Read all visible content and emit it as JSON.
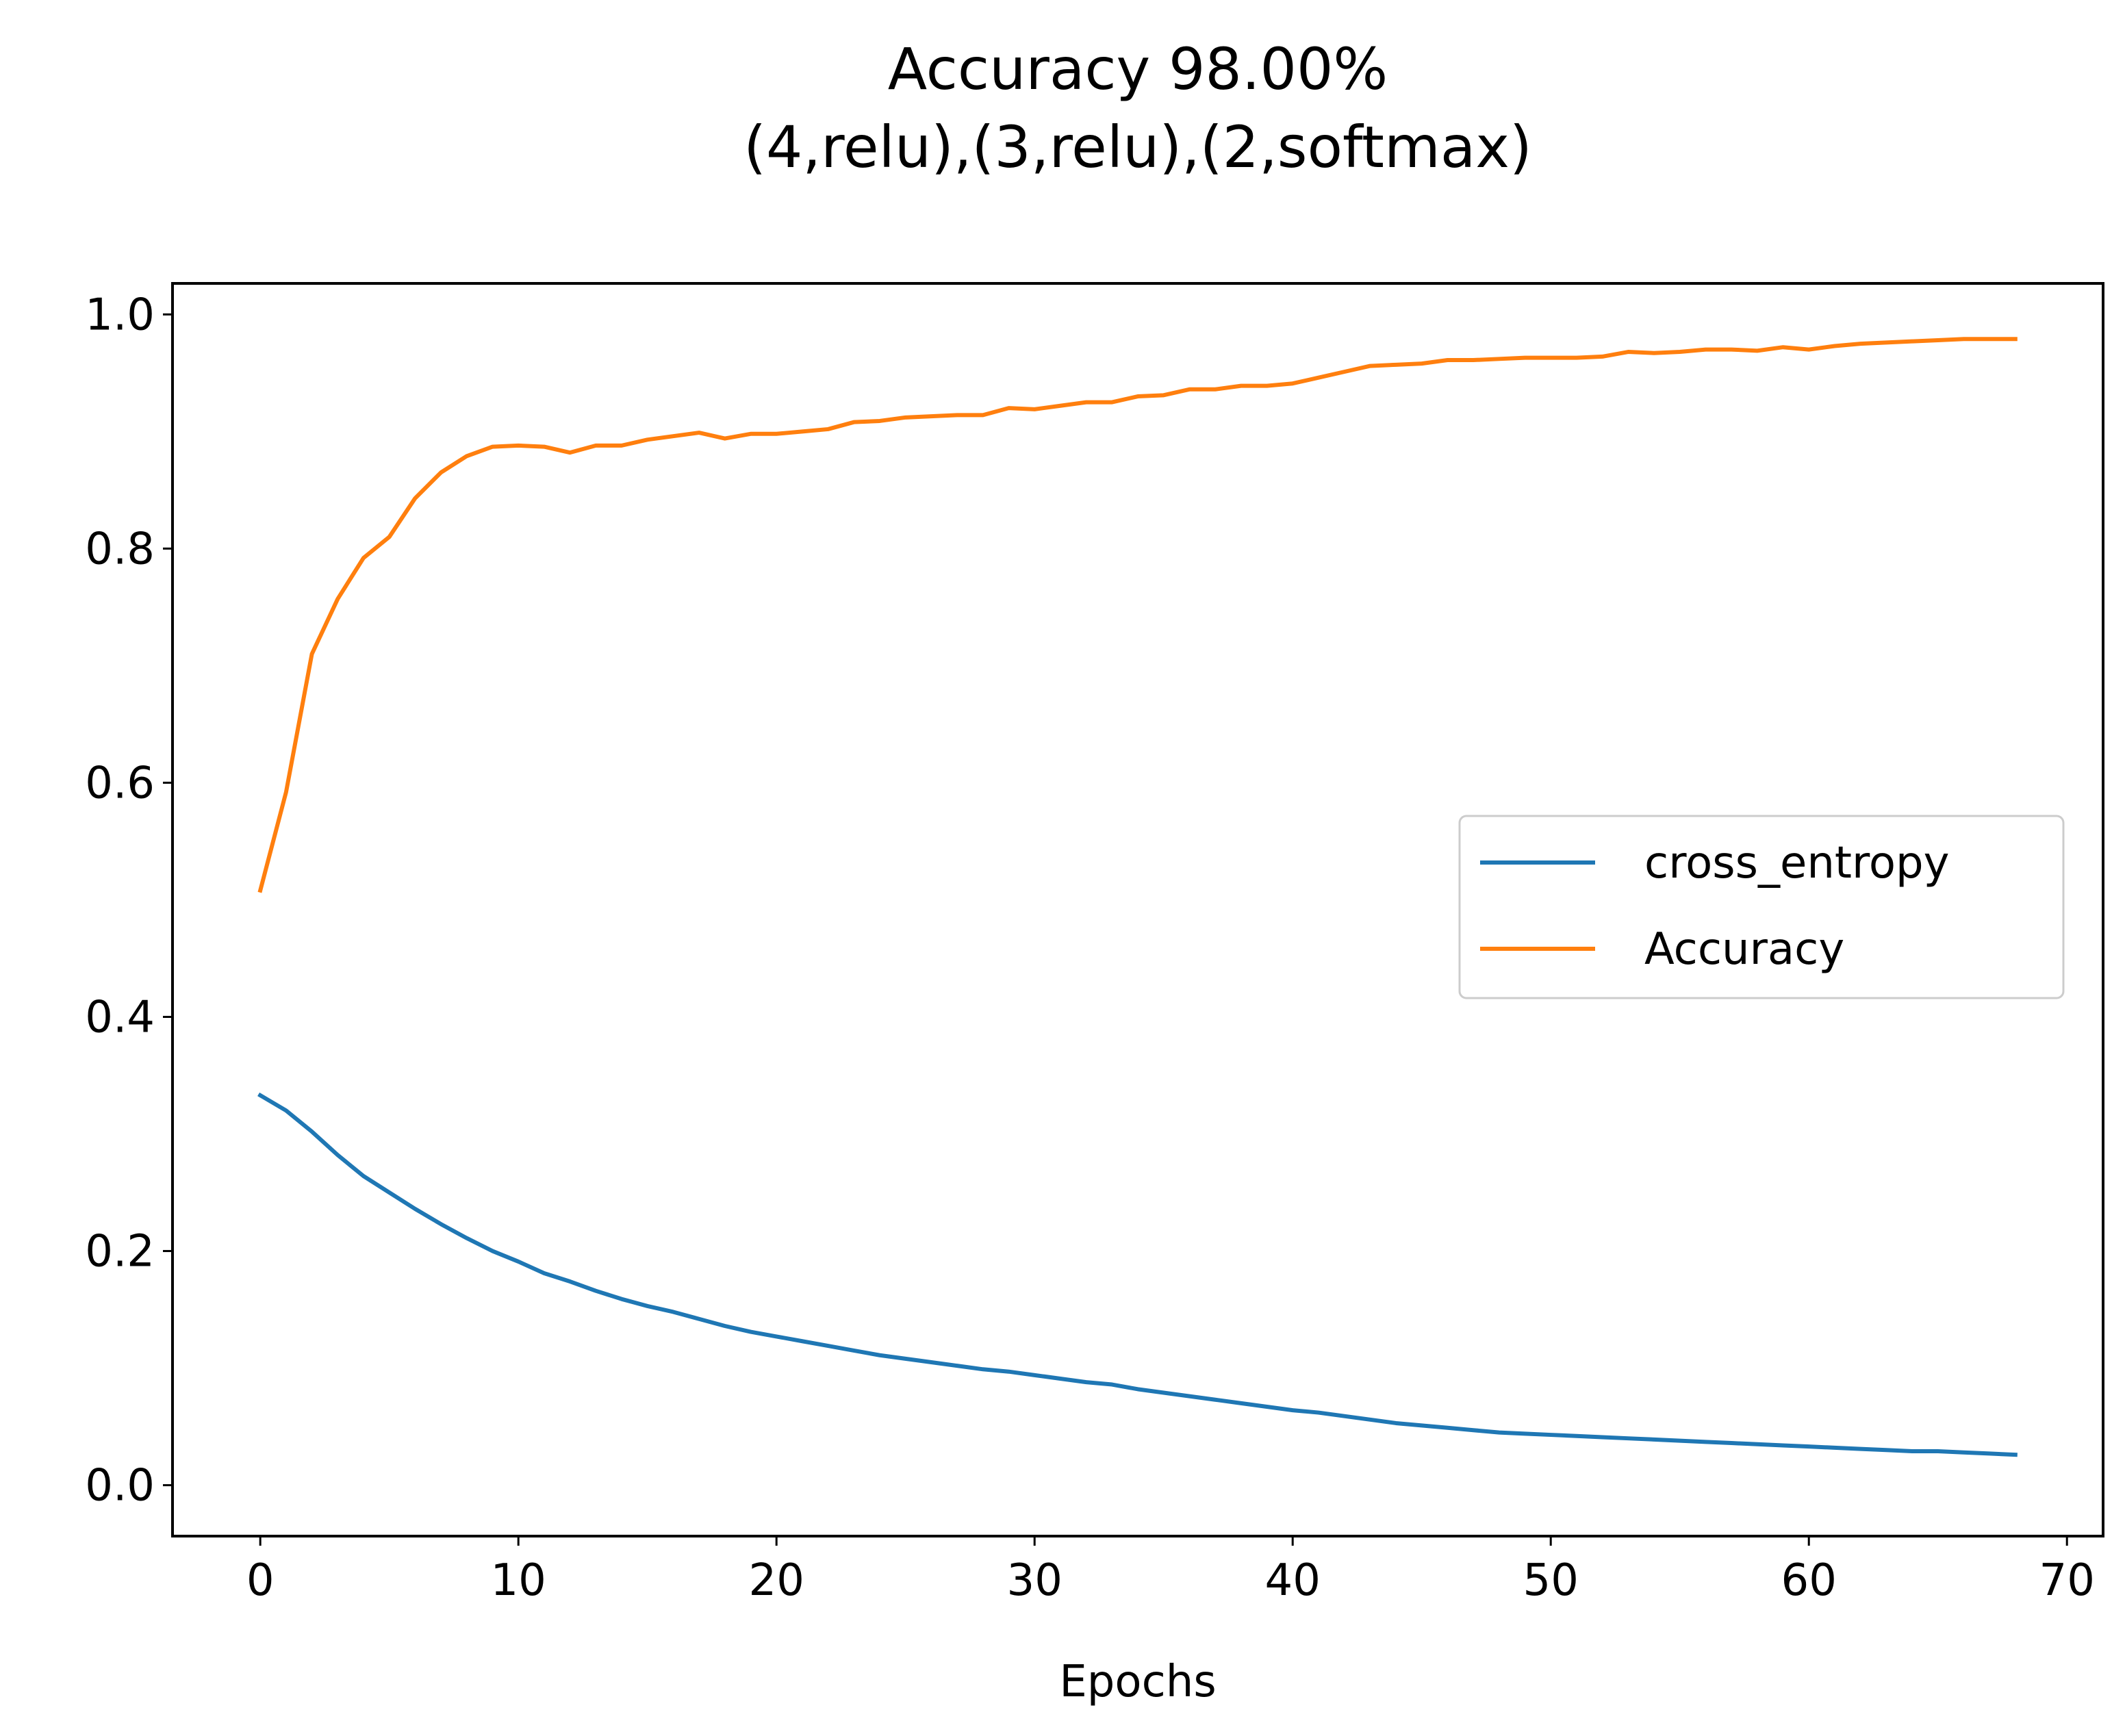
{
  "chart_data": {
    "type": "line",
    "title": "Accuracy 98.00%",
    "subtitle": "(4,relu),(3,relu),(2,softmax)",
    "xlabel": "Epochs",
    "ylabel": "",
    "xlim": [
      -3.4,
      71.4
    ],
    "ylim": [
      -0.0435,
      1.0265
    ],
    "xticks": [
      0,
      10,
      20,
      30,
      40,
      50,
      60,
      70
    ],
    "xtick_labels": [
      "0",
      "10",
      "20",
      "30",
      "40",
      "50",
      "60",
      "70"
    ],
    "yticks": [
      0.0,
      0.2,
      0.4,
      0.6,
      0.8,
      1.0
    ],
    "ytick_labels": [
      "0.0",
      "0.2",
      "0.4",
      "0.6",
      "0.8",
      "1.0"
    ],
    "grid": false,
    "legend": {
      "position": "center-right"
    },
    "x": [
      0,
      1,
      2,
      3,
      4,
      5,
      6,
      7,
      8,
      9,
      10,
      11,
      12,
      13,
      14,
      15,
      16,
      17,
      18,
      19,
      20,
      21,
      22,
      23,
      24,
      25,
      26,
      27,
      28,
      29,
      30,
      31,
      32,
      33,
      34,
      35,
      36,
      37,
      38,
      39,
      40,
      41,
      42,
      43,
      44,
      45,
      46,
      47,
      48,
      49,
      50,
      51,
      52,
      53,
      54,
      55,
      56,
      57,
      58,
      59,
      60,
      61,
      62,
      63,
      64,
      65,
      66,
      67,
      68
    ],
    "series": [
      {
        "name": "cross_entropy",
        "color": "#1f77b4",
        "values": [
          0.333,
          0.32,
          0.302,
          0.282,
          0.264,
          0.25,
          0.236,
          0.223,
          0.211,
          0.2,
          0.191,
          0.181,
          0.174,
          0.166,
          0.159,
          0.153,
          0.148,
          0.142,
          0.136,
          0.131,
          0.127,
          0.123,
          0.119,
          0.115,
          0.111,
          0.108,
          0.105,
          0.102,
          0.099,
          0.097,
          0.094,
          0.091,
          0.088,
          0.086,
          0.082,
          0.079,
          0.076,
          0.073,
          0.07,
          0.067,
          0.064,
          0.062,
          0.059,
          0.056,
          0.053,
          0.051,
          0.049,
          0.047,
          0.045,
          0.044,
          0.043,
          0.042,
          0.041,
          0.04,
          0.039,
          0.038,
          0.037,
          0.036,
          0.035,
          0.034,
          0.033,
          0.032,
          0.031,
          0.03,
          0.029,
          0.029,
          0.028,
          0.027,
          0.026
        ]
      },
      {
        "name": "Accuracy",
        "color": "#ff7f0e",
        "values": [
          0.508,
          0.592,
          0.71,
          0.757,
          0.792,
          0.81,
          0.843,
          0.865,
          0.879,
          0.887,
          0.888,
          0.887,
          0.882,
          0.888,
          0.888,
          0.893,
          0.896,
          0.899,
          0.894,
          0.898,
          0.898,
          0.9,
          0.902,
          0.908,
          0.909,
          0.912,
          0.913,
          0.914,
          0.914,
          0.92,
          0.919,
          0.922,
          0.925,
          0.925,
          0.93,
          0.931,
          0.936,
          0.936,
          0.939,
          0.939,
          0.941,
          0.946,
          0.951,
          0.956,
          0.957,
          0.958,
          0.961,
          0.961,
          0.962,
          0.963,
          0.963,
          0.963,
          0.964,
          0.968,
          0.967,
          0.968,
          0.97,
          0.97,
          0.969,
          0.972,
          0.97,
          0.973,
          0.975,
          0.976,
          0.977,
          0.978,
          0.979,
          0.979,
          0.979
        ]
      }
    ]
  }
}
